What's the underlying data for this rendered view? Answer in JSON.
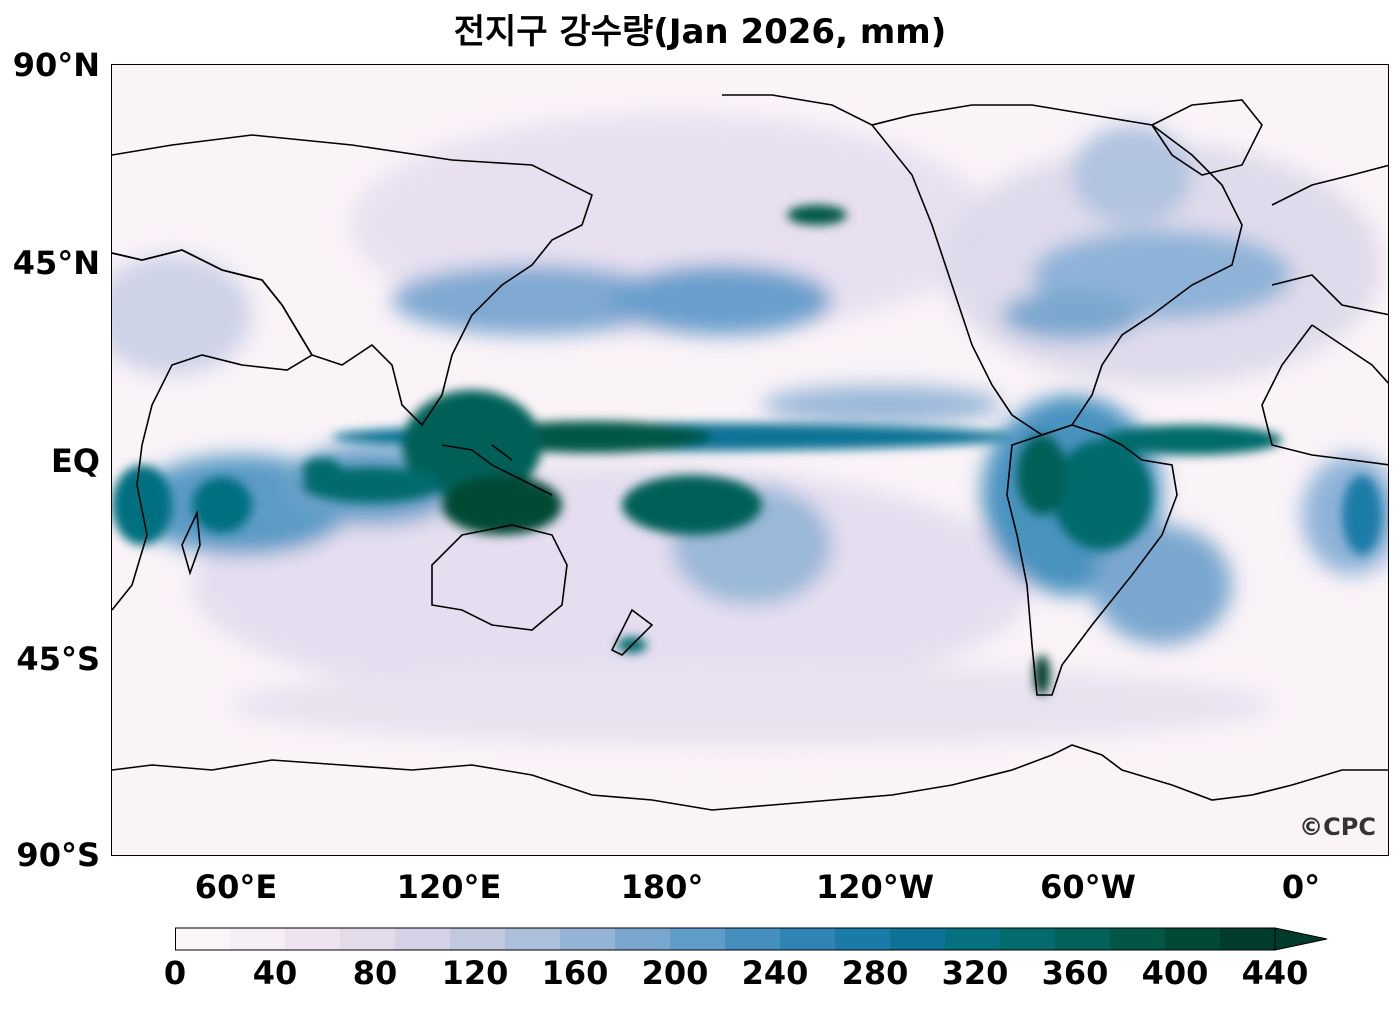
{
  "title": "전지구 강수량(Jan 2026, mm)",
  "lat_labels": [
    "90°N",
    "45°N",
    "EQ",
    "45°S",
    "90°S"
  ],
  "lon_labels": [
    "60°E",
    "120°E",
    "180°",
    "120°W",
    "60°W",
    "0°"
  ],
  "watermark": "©CPC",
  "colorbar": {
    "ticks": [
      "0",
      "40",
      "80",
      "120",
      "160",
      "200",
      "240",
      "280",
      "320",
      "360",
      "400",
      "440"
    ],
    "colors": [
      "#fbf5fa",
      "#f6eef5",
      "#eee4ef",
      "#e3dbea",
      "#d4d2e6",
      "#c2c8e0",
      "#acbfdb",
      "#94b3d6",
      "#7aa7cf",
      "#5f9cc8",
      "#458fbf",
      "#2f84b5",
      "#1b7ba8",
      "#0c7396",
      "#057080",
      "#036b6c",
      "#026158",
      "#025646",
      "#014836",
      "#003c2c"
    ],
    "extend": "max"
  }
}
